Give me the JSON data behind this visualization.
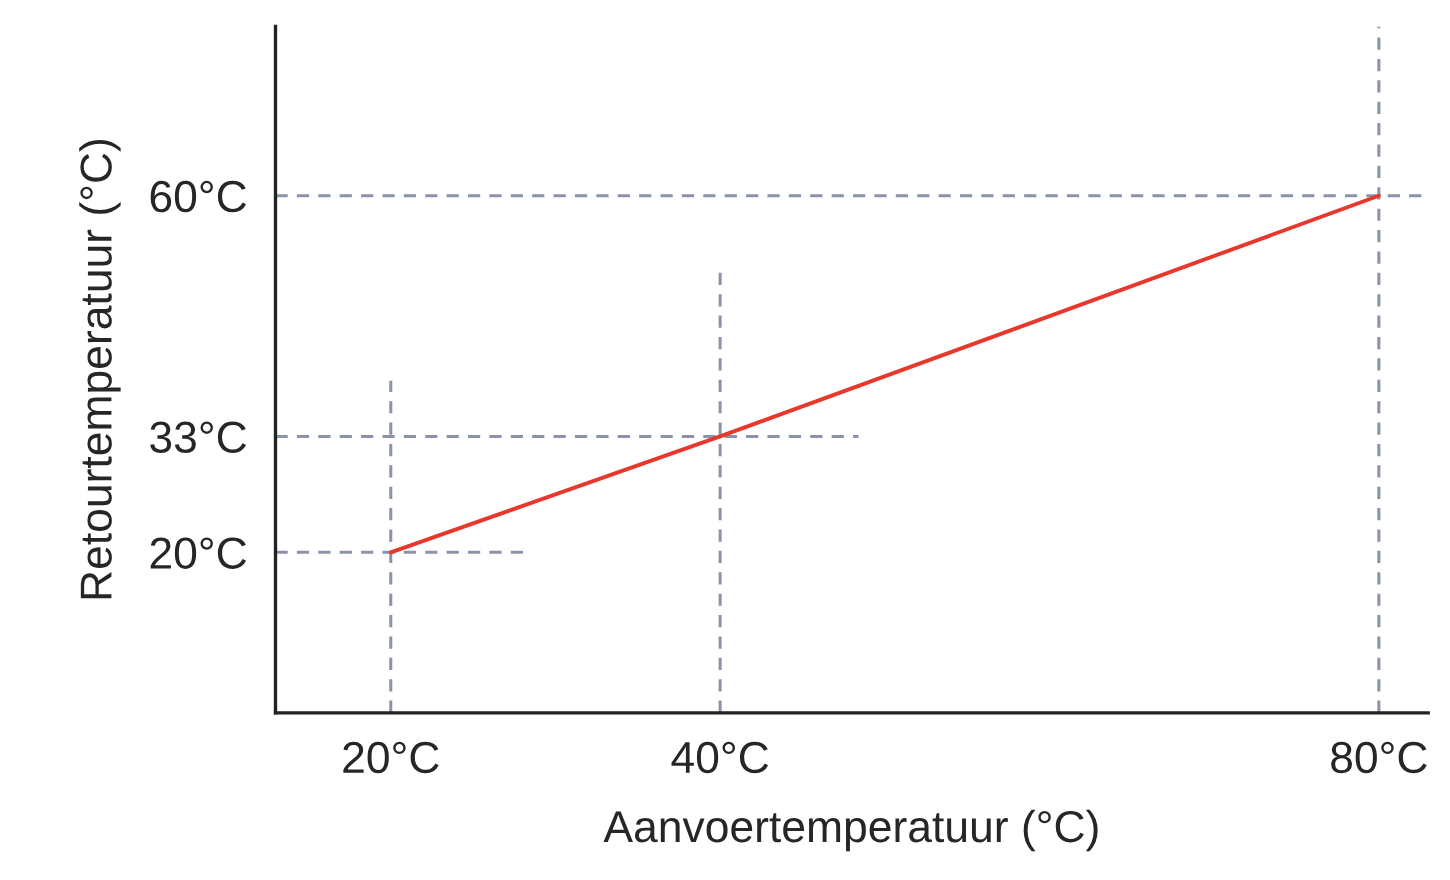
{
  "chart_data": {
    "type": "line",
    "xlabel": "Aanvoertemperatuur (°C)",
    "ylabel": "Retourtemperatuur (°C)",
    "x": [
      20,
      40,
      80
    ],
    "series": [
      {
        "color": "#e8372c",
        "values": [
          20,
          33,
          60
        ]
      }
    ],
    "xlim": [
      13,
      83
    ],
    "ylim": [
      2,
      79
    ],
    "xticks": [
      {
        "value": 20,
        "label": "20°C"
      },
      {
        "value": 40,
        "label": "40°C"
      },
      {
        "value": 80,
        "label": "80°C"
      }
    ],
    "yticks": [
      {
        "value": 20,
        "label": "20°C"
      },
      {
        "value": 33,
        "label": "33°C"
      },
      {
        "value": 60,
        "label": "60°C"
      }
    ],
    "ref_lines": [
      {
        "axis": "x",
        "value": 20,
        "color": "#8a93a8",
        "line_style": "dashed"
      },
      {
        "axis": "x",
        "value": 40,
        "color": "#8a93a8",
        "line_style": "dashed"
      },
      {
        "axis": "x",
        "value": 80,
        "color": "#8a93a8",
        "line_style": "dashed"
      },
      {
        "axis": "y",
        "value": 20,
        "color": "#8a93a8",
        "line_style": "dashed"
      },
      {
        "axis": "y",
        "value": 33,
        "color": "#8a93a8",
        "line_style": "dashed"
      },
      {
        "axis": "y",
        "value": 60,
        "color": "#8a93a8",
        "line_style": "dashed"
      }
    ],
    "grid": false,
    "legend": false,
    "marker": "none",
    "line_style": "solid"
  }
}
